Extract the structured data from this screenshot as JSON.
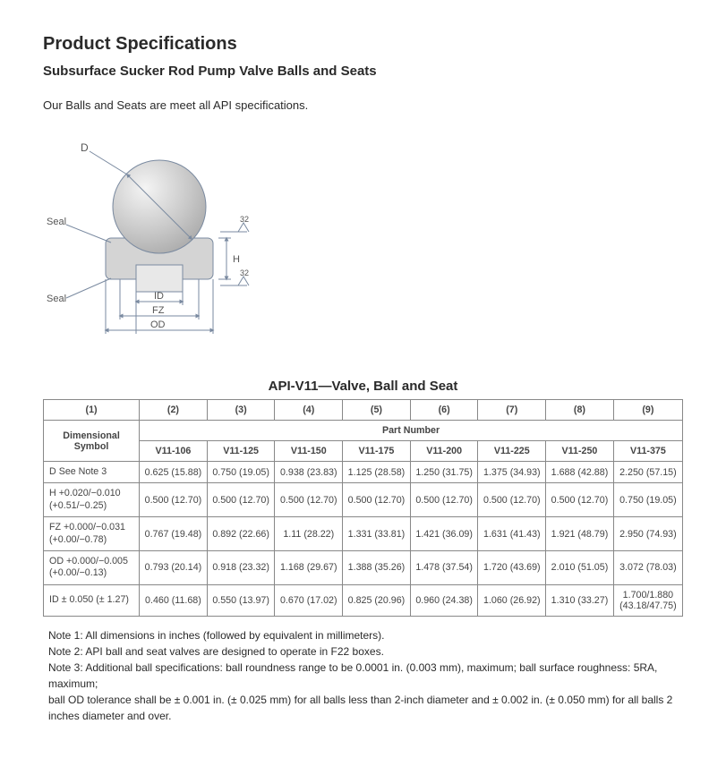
{
  "heading": "Product Specifications",
  "subheading": "Subsurface Sucker Rod Pump Valve Balls and Seats",
  "intro": "Our Balls and Seats are meet all API specifications.",
  "diagram": {
    "labels": {
      "D": "D",
      "Seal1": "Seal",
      "Seal2": "Seal",
      "ID": "ID",
      "FZ": "FZ",
      "OD": "OD",
      "H": "H",
      "rough": "32"
    },
    "colors": {
      "stroke": "#7a8aa0",
      "fill_ball": "#d8d8d8",
      "fill_seat": "#d4d4d4",
      "bg": "#ffffff"
    }
  },
  "table": {
    "title": "API-V11—Valve, Ball and Seat",
    "header_nums": [
      "(1)",
      "(2)",
      "(3)",
      "(4)",
      "(5)",
      "(6)",
      "(7)",
      "(8)",
      "(9)"
    ],
    "dim_label": "Dimensional\nSymbol",
    "part_label": "Part Number",
    "parts": [
      "V11-106",
      "V11-125",
      "V11-150",
      "V11-175",
      "V11-200",
      "V11-225",
      "V11-250",
      "V11-375"
    ],
    "rows": [
      {
        "label": "D   See Note 3",
        "cells": [
          "0.625 (15.88)",
          "0.750 (19.05)",
          "0.938 (23.83)",
          "1.125 (28.58)",
          "1.250 (31.75)",
          "1.375 (34.93)",
          "1.688 (42.88)",
          "2.250 (57.15)"
        ]
      },
      {
        "label": "H +0.020/−0.010\n(+0.51/−0.25)",
        "cells": [
          "0.500 (12.70)",
          "0.500 (12.70)",
          "0.500 (12.70)",
          "0.500 (12.70)",
          "0.500 (12.70)",
          "0.500 (12.70)",
          "0.500 (12.70)",
          "0.750 (19.05)"
        ]
      },
      {
        "label": "FZ +0.000/−0.031\n(+0.00/−0.78)",
        "cells": [
          "0.767 (19.48)",
          "0.892 (22.66)",
          "1.11 (28.22)",
          "1.331 (33.81)",
          "1.421 (36.09)",
          "1.631 (41.43)",
          "1.921 (48.79)",
          "2.950 (74.93)"
        ]
      },
      {
        "label": "OD +0.000/−0.005\n(+0.00/−0.13)",
        "cells": [
          "0.793 (20.14)",
          "0.918 (23.32)",
          "1.168 (29.67)",
          "1.388 (35.26)",
          "1.478 (37.54)",
          "1.720 (43.69)",
          "2.010 (51.05)",
          "3.072 (78.03)"
        ]
      },
      {
        "label": "ID ± 0.050 (± 1.27)",
        "cells": [
          "0.460 (11.68)",
          "0.550 (13.97)",
          "0.670 (17.02)",
          "0.825 (20.96)",
          "0.960 (24.38)",
          "1.060 (26.92)",
          "1.310 (33.27)",
          "1.700/1.880\n(43.18/47.75)"
        ]
      }
    ],
    "col_widths": [
      "15%",
      "10.6%",
      "10.6%",
      "10.6%",
      "10.6%",
      "10.6%",
      "10.6%",
      "10.6%",
      "10.8%"
    ]
  },
  "notes": [
    "Note 1: All dimensions in inches (followed by equivalent in millimeters).",
    "Note 2: API ball and seat valves are designed to operate in F22 boxes.",
    "Note 3: Additional ball specifications: ball roundness range to be 0.0001 in. (0.003 mm), maximum; ball surface roughness: 5RA, maximum;",
    "ball OD tolerance shall be ± 0.001 in. (± 0.025 mm) for all balls less than 2-inch diameter and ± 0.002 in. (± 0.050 mm) for all balls 2 inches diameter and over."
  ]
}
